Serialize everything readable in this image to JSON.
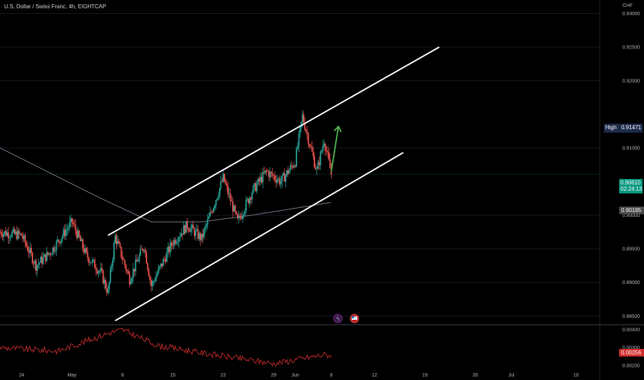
{
  "header": {
    "symbol": "U.S. Dollar / Swiss Franc, 4h, EIGHTCAP"
  },
  "axis": {
    "currency": "CHF",
    "price_ticks": [
      "0.93000",
      "0.92500",
      "0.92000",
      "0.91000",
      "0.90000",
      "0.89500",
      "0.89000",
      "0.88500"
    ],
    "osc_ticks": [
      "0.00400",
      "0.00300",
      "0.00200"
    ],
    "time_ticks": [
      "24",
      "May",
      "8",
      "15",
      "22",
      "29",
      "Jun",
      "6",
      "12",
      "19",
      "26",
      "Jul",
      "10"
    ]
  },
  "tags": {
    "high_label": "High",
    "high_value": "0.91471",
    "last_price": "0.90610",
    "countdown": "02:24:13",
    "ma_value": "0.90195",
    "osc_value": "0.00256"
  },
  "colors": {
    "up": "#26a69a",
    "down": "#ef5350",
    "channel": "#ffffff",
    "arrow": "#4caf50",
    "ma": "#787b86",
    "osc": "#d32f2f",
    "last_price_bg": "#089981",
    "high_bg": "#1e2b4a",
    "ma_bg": "#4a4a4a"
  },
  "chart_data": {
    "type": "candlestick",
    "title": "U.S. Dollar / Swiss Franc, 4h, EIGHTCAP",
    "price_range": [
      0.8837,
      0.932
    ],
    "time_range_days": [
      "2023-04-21",
      "2023-07-13"
    ],
    "close_path": [
      {
        "date": "2023-04-21",
        "price": 0.8975
      },
      {
        "date": "2023-04-24",
        "price": 0.897
      },
      {
        "date": "2023-04-26",
        "price": 0.8925
      },
      {
        "date": "2023-04-28",
        "price": 0.8945
      },
      {
        "date": "2023-05-01",
        "price": 0.899
      },
      {
        "date": "2023-05-03",
        "price": 0.894
      },
      {
        "date": "2023-05-05",
        "price": 0.8915
      },
      {
        "date": "2023-05-06",
        "price": 0.8885
      },
      {
        "date": "2023-05-07",
        "price": 0.8968
      },
      {
        "date": "2023-05-09",
        "price": 0.8905
      },
      {
        "date": "2023-05-11",
        "price": 0.8955
      },
      {
        "date": "2023-05-12",
        "price": 0.8895
      },
      {
        "date": "2023-05-15",
        "price": 0.896
      },
      {
        "date": "2023-05-17",
        "price": 0.8985
      },
      {
        "date": "2023-05-19",
        "price": 0.8965
      },
      {
        "date": "2023-05-22",
        "price": 0.9055
      },
      {
        "date": "2023-05-24",
        "price": 0.899
      },
      {
        "date": "2023-05-26",
        "price": 0.9035
      },
      {
        "date": "2023-05-28",
        "price": 0.9065
      },
      {
        "date": "2023-05-30",
        "price": 0.905
      },
      {
        "date": "2023-06-01",
        "price": 0.908
      },
      {
        "date": "2023-06-02",
        "price": 0.9147
      },
      {
        "date": "2023-06-04",
        "price": 0.9065
      },
      {
        "date": "2023-06-05",
        "price": 0.9112
      },
      {
        "date": "2023-06-06",
        "price": 0.9061
      }
    ],
    "moving_average": {
      "value_last": 0.90195,
      "path": [
        {
          "date": "2023-04-21",
          "price": 0.91
        },
        {
          "date": "2023-05-05",
          "price": 0.9025
        },
        {
          "date": "2023-05-12",
          "price": 0.899
        },
        {
          "date": "2023-05-19",
          "price": 0.899
        },
        {
          "date": "2023-05-26",
          "price": 0.9
        },
        {
          "date": "2023-06-02",
          "price": 0.9012
        },
        {
          "date": "2023-06-06",
          "price": 0.9019
        }
      ]
    },
    "annotations": [
      {
        "type": "channel_upper",
        "from": {
          "date": "2023-05-06",
          "price": 0.897
        },
        "to": {
          "date": "2023-06-21",
          "price": 0.925
        }
      },
      {
        "type": "channel_lower",
        "from": {
          "date": "2023-05-07",
          "price": 0.8843
        },
        "to": {
          "date": "2023-06-16",
          "price": 0.9093
        }
      },
      {
        "type": "arrow",
        "from": {
          "date": "2023-06-06",
          "price": 0.9065
        },
        "to": {
          "date": "2023-06-07",
          "price": 0.9132
        }
      }
    ],
    "high": 0.91471,
    "last": 0.9061,
    "oscillator": {
      "range": [
        0.0018,
        0.0042
      ],
      "last": 0.00256
    }
  }
}
